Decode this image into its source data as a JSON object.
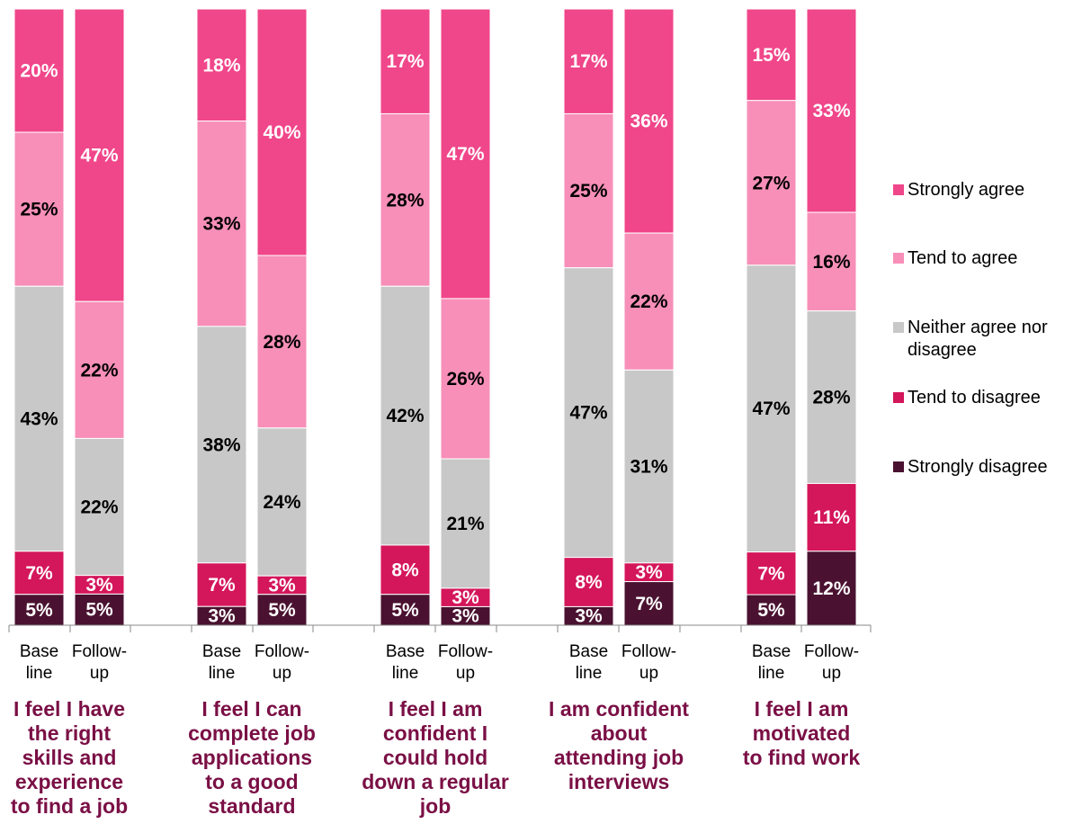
{
  "chart_data": {
    "type": "bar",
    "stacked": true,
    "percent": true,
    "legend_position": "right",
    "segments": [
      {
        "name": "Strongly agree",
        "color": "#f0468a",
        "text_color": "#ffffff"
      },
      {
        "name": "Tend to agree",
        "color": "#f78fb8",
        "text_color": "#000000"
      },
      {
        "name": "Neither agree nor disagree",
        "color": "#c8c8c8",
        "text_color": "#000000"
      },
      {
        "name": "Tend to disagree",
        "color": "#d4165a",
        "text_color": "#ffffff"
      },
      {
        "name": "Strongly disagree",
        "color": "#4a1230",
        "text_color": "#ffffff"
      }
    ],
    "legend_lines": [
      [
        "Strongly agree"
      ],
      [
        "Tend to agree"
      ],
      [
        "Neither agree nor",
        "disagree"
      ],
      [
        "Tend to disagree"
      ],
      [
        "Strongly disagree"
      ]
    ],
    "groups": [
      {
        "title_lines": [
          "I feel I have",
          "the right",
          "skills and",
          "experience",
          "to find a job"
        ],
        "bars": [
          {
            "label_lines": [
              "Base",
              "line"
            ],
            "values": [
              20,
              25,
              43,
              7,
              5
            ]
          },
          {
            "label_lines": [
              "Follow-",
              "up"
            ],
            "values": [
              47,
              22,
              22,
              3,
              5
            ]
          }
        ]
      },
      {
        "title_lines": [
          "I feel I can",
          "complete job",
          "applications",
          "to a good",
          "standard"
        ],
        "bars": [
          {
            "label_lines": [
              "Base",
              "line"
            ],
            "values": [
              18,
              33,
              38,
              7,
              3
            ]
          },
          {
            "label_lines": [
              "Follow-",
              "up"
            ],
            "values": [
              40,
              28,
              24,
              3,
              5
            ]
          }
        ]
      },
      {
        "title_lines": [
          "I feel I am",
          "confident I",
          "could hold",
          "down a regular",
          "job"
        ],
        "bars": [
          {
            "label_lines": [
              "Base",
              "line"
            ],
            "values": [
              17,
              28,
              42,
              8,
              5
            ]
          },
          {
            "label_lines": [
              "Follow-",
              "up"
            ],
            "values": [
              47,
              26,
              21,
              3,
              3
            ]
          }
        ]
      },
      {
        "title_lines": [
          "I am confident",
          "about",
          "attending job",
          "interviews"
        ],
        "bars": [
          {
            "label_lines": [
              "Base",
              "line"
            ],
            "values": [
              17,
              25,
              47,
              8,
              3
            ]
          },
          {
            "label_lines": [
              "Follow-",
              "up"
            ],
            "values": [
              36,
              22,
              31,
              3,
              7
            ]
          }
        ]
      },
      {
        "title_lines": [
          "I feel I am",
          "motivated",
          "to find work"
        ],
        "bars": [
          {
            "label_lines": [
              "Base",
              "line"
            ],
            "values": [
              15,
              27,
              47,
              7,
              5
            ]
          },
          {
            "label_lines": [
              "Follow-",
              "up"
            ],
            "values": [
              33,
              16,
              28,
              11,
              12
            ]
          }
        ]
      }
    ]
  }
}
